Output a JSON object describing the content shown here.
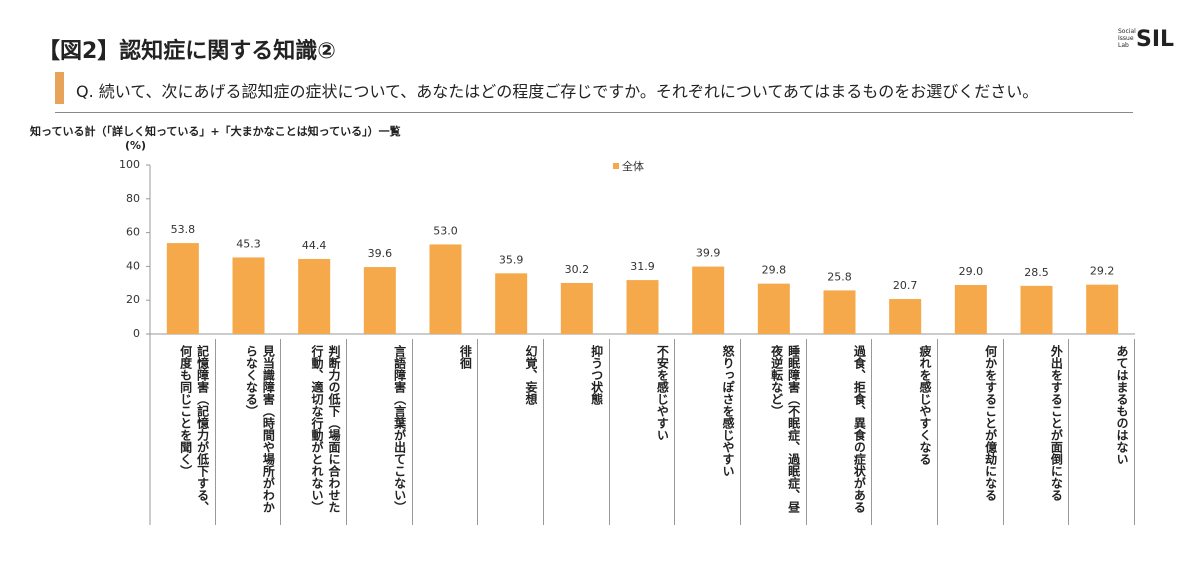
{
  "header": {
    "title": "【図2】認知症に関する知識②",
    "question": "Q. 続いて、次にあげる認知症の症状について、あなたはどの程度ご存じですか。それぞれについてあてはまるものをお選びください。",
    "logo_small": [
      "Social",
      "Issue",
      "Lab"
    ],
    "logo": "SIL"
  },
  "chart_data": {
    "type": "bar",
    "title": "知っている計（「詳しく知っている」+「大まかなことは知っている」）一覧",
    "y_unit": "(%)",
    "categories": [
      "記憶障害（記憶力が低下する、何度も同じことを聞く）",
      "見当識障害（時間や場所がわからなくなる）",
      "判断力の低下（場面に合わせた行動、適切な行動がとれない）",
      "言語障害（言葉が出てこない）",
      "徘徊",
      "幻覚、妄想",
      "抑うつ状態",
      "不安を感じやすい",
      "怒りっぽさを感じやすい",
      "睡眠障害（不眠症、過眠症、昼夜逆転など）",
      "過食、拒食、異食の症状がある",
      "疲れを感じやすくなる",
      "何かをすることが億劫になる",
      "外出をすることが面倒になる",
      "あてはまるものはない"
    ],
    "series": [
      {
        "name": "全体",
        "color": "#f5a94a",
        "values": [
          53.8,
          45.3,
          44.4,
          39.6,
          53.0,
          35.9,
          30.2,
          31.9,
          39.9,
          29.8,
          25.8,
          20.7,
          29.0,
          28.5,
          29.2
        ],
        "value_labels": [
          "53.8",
          "45.3",
          "44.4",
          "39.6",
          "53.0",
          "35.9",
          "30.2",
          "31.9",
          "39.9",
          "29.8",
          "25.8",
          "20.7",
          "29.0",
          "28.5",
          "29.2"
        ]
      }
    ],
    "ylim": [
      0,
      100
    ],
    "yticks": [
      0,
      20,
      40,
      60,
      80,
      100
    ],
    "grid": false
  }
}
